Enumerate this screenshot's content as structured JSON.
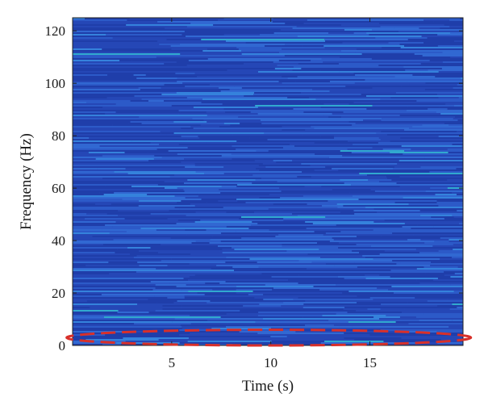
{
  "chart_data": {
    "type": "heatmap",
    "title": "",
    "xlabel": "Time (s)",
    "ylabel": "Frequency (Hz)",
    "xlim": [
      0,
      19.7
    ],
    "ylim": [
      0,
      125
    ],
    "x_ticks": [
      5,
      10,
      15
    ],
    "y_ticks": [
      0,
      20,
      40,
      60,
      80,
      100,
      120
    ],
    "colormap": "parula",
    "colors": {
      "background": "#2a50c0",
      "low": "#1e3aa8",
      "high": "#2fb0c6",
      "highlight_ellipse": "#d8302a"
    },
    "annotations": [
      {
        "type": "dashed-ellipse",
        "x_range": [
          -0.3,
          20.1
        ],
        "y_range": [
          0,
          6
        ],
        "color": "#d8302a"
      }
    ],
    "grid": false,
    "legend": "none"
  }
}
